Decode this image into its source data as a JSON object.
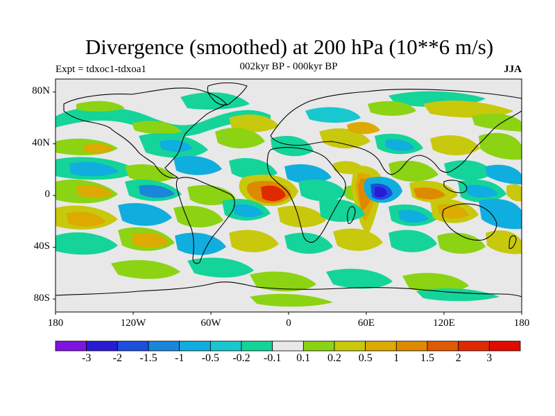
{
  "map": {
    "title": "Divergence (smoothed) at 200 hPa (10**6 m/s)",
    "left_subtitle": "Expt = tdxoc1-tdxoa1",
    "center_subtitle": "002kyr BP - 000kyr BP",
    "right_subtitle": "JJA",
    "lat_labels": [
      "80N",
      "40N",
      "0",
      "40S",
      "80S"
    ],
    "lon_labels": [
      "180",
      "120W",
      "60W",
      "0",
      "60E",
      "120E",
      "180"
    ]
  },
  "colorbar": {
    "levels": [
      "-3",
      "-2",
      "-1.5",
      "-1",
      "-0.5",
      "-0.2",
      "-0.1",
      "0.1",
      "0.2",
      "0.5",
      "1",
      "1.5",
      "2",
      "3"
    ],
    "colors": [
      "#7e14e0",
      "#2a1ad6",
      "#1d4ede",
      "#1a86da",
      "#10aede",
      "#18c8ce",
      "#14d49a",
      "#e8e8e8",
      "#8cd314",
      "#c8c80c",
      "#dcaa00",
      "#de8a00",
      "#df5a00",
      "#df2a00",
      "#e00c00"
    ]
  },
  "palette": {
    "ocean_bg": "#e8e8e8",
    "neg": [
      "#14d49a",
      "#18c8ce",
      "#10aede",
      "#1a86da",
      "#1d4ede"
    ],
    "pos": [
      "#8cd314",
      "#c8c80c",
      "#dcaa00",
      "#de8a00",
      "#df5a00",
      "#df2a00"
    ]
  }
}
